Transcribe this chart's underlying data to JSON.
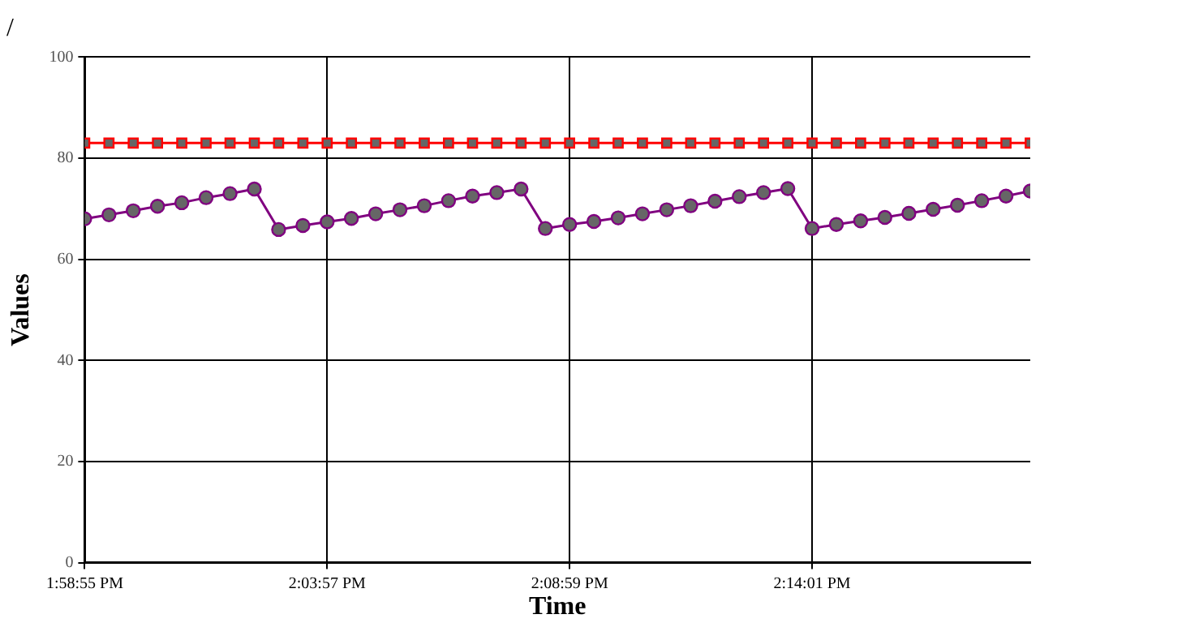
{
  "chart_data": {
    "type": "line",
    "title": "/",
    "xlabel": "Time",
    "ylabel": "Values",
    "x": [
      13.9819,
      13.9903,
      13.9987,
      14.0071,
      14.0155,
      14.0239,
      14.0322,
      14.0406,
      14.049,
      14.0574,
      14.0658,
      14.0742,
      14.0826,
      14.091,
      14.0994,
      14.1078,
      14.1161,
      14.1245,
      14.1329,
      14.1413,
      14.1497,
      14.1581,
      14.1665,
      14.1749,
      14.1833,
      14.1916,
      14.2,
      14.2084,
      14.2168,
      14.2252,
      14.2336,
      14.242,
      14.2504,
      14.2588,
      14.2671,
      14.2755,
      14.2839,
      14.2923,
      14.3007,
      14.3091
    ],
    "series": [
      {
        "color": "#ff0000",
        "marker": "square",
        "values": [
          83,
          83,
          83,
          83,
          83,
          83,
          83,
          83,
          83,
          83,
          83,
          83,
          83,
          83,
          83,
          83,
          83,
          83,
          83,
          83,
          83,
          83,
          83,
          83,
          83,
          83,
          83,
          83,
          83,
          83,
          83,
          83,
          83,
          83,
          83,
          83,
          83,
          83,
          83,
          83
        ]
      },
      {
        "color": "#800080",
        "marker": "circle",
        "values": [
          68.0,
          68.8,
          69.6,
          70.5,
          71.2,
          72.2,
          73.0,
          73.9,
          65.9,
          66.7,
          67.4,
          68.1,
          69.0,
          69.8,
          70.6,
          71.6,
          72.5,
          73.2,
          73.9,
          66.1,
          66.9,
          67.5,
          68.2,
          69.0,
          69.8,
          70.6,
          71.5,
          72.4,
          73.2,
          74.0,
          66.1,
          66.9,
          67.6,
          68.3,
          69.1,
          69.9,
          70.7,
          71.6,
          72.5,
          73.5
        ]
      }
    ],
    "xlim": [
      13.9819,
      14.3091
    ],
    "xticks": [
      {
        "value": 13.9819,
        "label": "1:58:55 PM"
      },
      {
        "value": 14.0658,
        "label": "2:03:57 PM"
      },
      {
        "value": 14.1497,
        "label": "2:08:59 PM"
      },
      {
        "value": 14.2336,
        "label": "2:14:01 PM"
      }
    ],
    "ylim": [
      0,
      100
    ],
    "yticks": [
      0,
      20,
      40,
      60,
      80,
      100
    ],
    "grid": true,
    "legend": false,
    "line_style": "solid"
  }
}
